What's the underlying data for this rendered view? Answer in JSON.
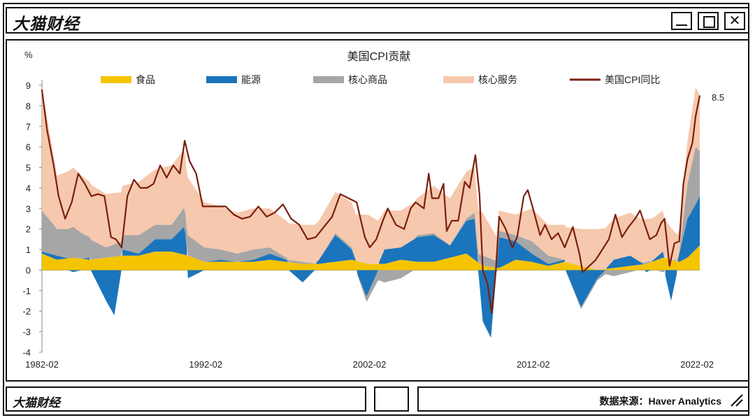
{
  "window": {
    "title": "大猫财经"
  },
  "footer": {
    "brand": "大猫财经",
    "source": "数据来源：Haver Analytics"
  },
  "colors": {
    "food": "#f5c400",
    "energy": "#1b75bc",
    "core_goods": "#a6a6a6",
    "core_services": "#f6c8ad",
    "cpi": "#7a1f0e"
  },
  "chart_data": {
    "type": "area",
    "title": "美国CPI贡献",
    "ylabel": "%",
    "ylim": [
      -4,
      9
    ],
    "yticks": [
      -4,
      -3,
      -2,
      -1,
      0,
      1,
      2,
      3,
      4,
      5,
      6,
      7,
      8,
      9
    ],
    "xlim": [
      1982.083,
      2022.25
    ],
    "xtick_labels": [
      "1982-02",
      "1992-02",
      "2002-02",
      "2012-02",
      "2022-02"
    ],
    "xticks": [
      1982.083,
      1992.083,
      2002.083,
      2012.083,
      2022.083
    ],
    "legend_position": "top",
    "annotation": "8.5",
    "series": [
      {
        "name": "食品",
        "key": "food",
        "points": [
          [
            1982.08,
            0.8
          ],
          [
            1983.0,
            0.5
          ],
          [
            1984.0,
            0.6
          ],
          [
            1985.0,
            0.5
          ],
          [
            1986.0,
            0.6
          ],
          [
            1987.0,
            0.7
          ],
          [
            1988.0,
            0.7
          ],
          [
            1989.0,
            0.9
          ],
          [
            1990.0,
            0.9
          ],
          [
            1991.0,
            0.7
          ],
          [
            1992.0,
            0.4
          ],
          [
            1993.0,
            0.4
          ],
          [
            1994.0,
            0.4
          ],
          [
            1995.0,
            0.4
          ],
          [
            1996.0,
            0.5
          ],
          [
            1997.0,
            0.4
          ],
          [
            1998.0,
            0.3
          ],
          [
            1999.0,
            0.3
          ],
          [
            2000.0,
            0.4
          ],
          [
            2001.0,
            0.5
          ],
          [
            2002.0,
            0.3
          ],
          [
            2003.0,
            0.3
          ],
          [
            2004.0,
            0.5
          ],
          [
            2005.0,
            0.4
          ],
          [
            2006.0,
            0.4
          ],
          [
            2007.0,
            0.6
          ],
          [
            2008.0,
            0.8
          ],
          [
            2009.0,
            0.2
          ],
          [
            2010.0,
            0.1
          ],
          [
            2011.0,
            0.5
          ],
          [
            2012.0,
            0.4
          ],
          [
            2013.0,
            0.2
          ],
          [
            2014.0,
            0.4
          ],
          [
            2015.0,
            0.2
          ],
          [
            2016.0,
            0.0
          ],
          [
            2017.0,
            0.1
          ],
          [
            2018.0,
            0.2
          ],
          [
            2019.0,
            0.3
          ],
          [
            2020.0,
            0.6
          ],
          [
            2021.0,
            0.4
          ],
          [
            2021.5,
            0.6
          ],
          [
            2022.0,
            1.0
          ],
          [
            2022.25,
            1.2
          ]
        ]
      },
      {
        "name": "能源",
        "key": "energy",
        "points": [
          [
            1982.08,
            0.1
          ],
          [
            1983.0,
            0.2
          ],
          [
            1984.0,
            -0.1
          ],
          [
            1985.0,
            0.1
          ],
          [
            1986.0,
            -1.5
          ],
          [
            1986.5,
            -2.2
          ],
          [
            1987.0,
            0.3
          ],
          [
            1988.0,
            0.1
          ],
          [
            1989.0,
            0.6
          ],
          [
            1990.0,
            0.6
          ],
          [
            1990.8,
            1.4
          ],
          [
            1991.0,
            -0.4
          ],
          [
            1992.0,
            0.0
          ],
          [
            1993.0,
            0.1
          ],
          [
            1994.0,
            0.0
          ],
          [
            1995.0,
            0.1
          ],
          [
            1996.0,
            0.3
          ],
          [
            1997.0,
            0.1
          ],
          [
            1998.0,
            -0.6
          ],
          [
            1999.0,
            0.2
          ],
          [
            2000.0,
            1.3
          ],
          [
            2001.0,
            0.5
          ],
          [
            2001.9,
            -1.3
          ],
          [
            2003.0,
            0.7
          ],
          [
            2004.0,
            0.6
          ],
          [
            2005.0,
            1.2
          ],
          [
            2006.0,
            1.3
          ],
          [
            2007.0,
            0.6
          ],
          [
            2008.0,
            1.6
          ],
          [
            2008.5,
            2.0
          ],
          [
            2009.0,
            -2.5
          ],
          [
            2009.5,
            -3.3
          ],
          [
            2010.0,
            1.5
          ],
          [
            2011.0,
            0.9
          ],
          [
            2012.0,
            0.4
          ],
          [
            2013.0,
            0.1
          ],
          [
            2014.0,
            0.1
          ],
          [
            2015.0,
            -1.8
          ],
          [
            2016.0,
            -0.4
          ],
          [
            2017.0,
            0.4
          ],
          [
            2018.0,
            0.5
          ],
          [
            2019.0,
            -0.1
          ],
          [
            2020.0,
            0.3
          ],
          [
            2020.5,
            -1.5
          ],
          [
            2021.0,
            0.4
          ],
          [
            2021.5,
            1.9
          ],
          [
            2022.0,
            2.2
          ],
          [
            2022.25,
            2.4
          ]
        ]
      },
      {
        "name": "核心商品",
        "key": "core_goods",
        "points": [
          [
            1982.08,
            2.0
          ],
          [
            1983.0,
            1.3
          ],
          [
            1984.0,
            1.5
          ],
          [
            1985.0,
            1.0
          ],
          [
            1986.0,
            0.5
          ],
          [
            1987.0,
            0.7
          ],
          [
            1988.0,
            0.9
          ],
          [
            1989.0,
            0.7
          ],
          [
            1990.0,
            0.7
          ],
          [
            1991.0,
            1.0
          ],
          [
            1992.0,
            0.7
          ],
          [
            1993.0,
            0.5
          ],
          [
            1994.0,
            0.4
          ],
          [
            1995.0,
            0.5
          ],
          [
            1996.0,
            0.3
          ],
          [
            1997.0,
            0.1
          ],
          [
            1998.0,
            0.1
          ],
          [
            1999.0,
            0.0
          ],
          [
            2000.0,
            0.1
          ],
          [
            2001.0,
            0.1
          ],
          [
            2002.0,
            -0.3
          ],
          [
            2003.0,
            -0.6
          ],
          [
            2004.0,
            -0.4
          ],
          [
            2005.0,
            0.1
          ],
          [
            2006.0,
            0.1
          ],
          [
            2007.0,
            0.0
          ],
          [
            2008.0,
            0.1
          ],
          [
            2009.0,
            0.5
          ],
          [
            2010.0,
            0.3
          ],
          [
            2011.0,
            0.3
          ],
          [
            2012.0,
            0.6
          ],
          [
            2013.0,
            0.4
          ],
          [
            2014.0,
            0.0
          ],
          [
            2015.0,
            -0.1
          ],
          [
            2016.0,
            -0.1
          ],
          [
            2017.0,
            -0.3
          ],
          [
            2018.0,
            -0.1
          ],
          [
            2019.0,
            0.1
          ],
          [
            2020.0,
            -0.1
          ],
          [
            2021.0,
            0.1
          ],
          [
            2021.5,
            1.7
          ],
          [
            2022.0,
            2.8
          ],
          [
            2022.25,
            2.2
          ]
        ]
      },
      {
        "name": "核心服务",
        "key": "core_services",
        "points": [
          [
            1982.08,
            6.0
          ],
          [
            1983.0,
            2.6
          ],
          [
            1984.0,
            2.9
          ],
          [
            1985.0,
            2.7
          ],
          [
            1986.0,
            2.6
          ],
          [
            1987.0,
            2.4
          ],
          [
            1988.0,
            2.6
          ],
          [
            1989.0,
            2.7
          ],
          [
            1990.0,
            2.9
          ],
          [
            1991.0,
            2.8
          ],
          [
            1992.0,
            2.2
          ],
          [
            1993.0,
            2.1
          ],
          [
            1994.0,
            2.0
          ],
          [
            1995.0,
            2.0
          ],
          [
            1996.0,
            1.9
          ],
          [
            1997.0,
            1.8
          ],
          [
            1998.0,
            1.8
          ],
          [
            1999.0,
            1.9
          ],
          [
            2000.0,
            2.0
          ],
          [
            2001.0,
            2.2
          ],
          [
            2002.0,
            2.4
          ],
          [
            2003.0,
            1.9
          ],
          [
            2004.0,
            1.8
          ],
          [
            2005.0,
            1.8
          ],
          [
            2006.0,
            2.3
          ],
          [
            2007.0,
            2.3
          ],
          [
            2008.0,
            2.3
          ],
          [
            2009.0,
            2.1
          ],
          [
            2010.0,
            1.0
          ],
          [
            2011.0,
            1.0
          ],
          [
            2012.0,
            1.6
          ],
          [
            2013.0,
            1.5
          ],
          [
            2014.0,
            1.7
          ],
          [
            2015.0,
            1.8
          ],
          [
            2016.0,
            2.0
          ],
          [
            2017.0,
            2.0
          ],
          [
            2018.0,
            2.1
          ],
          [
            2019.0,
            2.1
          ],
          [
            2020.0,
            2.0
          ],
          [
            2021.0,
            1.1
          ],
          [
            2021.5,
            2.1
          ],
          [
            2022.0,
            2.9
          ],
          [
            2022.25,
            2.7
          ]
        ]
      }
    ],
    "line": {
      "name": "美国CPI同比",
      "key": "cpi",
      "points": [
        [
          1982.08,
          8.8
        ],
        [
          1982.4,
          6.8
        ],
        [
          1982.8,
          5.1
        ],
        [
          1983.1,
          3.6
        ],
        [
          1983.5,
          2.5
        ],
        [
          1983.9,
          3.3
        ],
        [
          1984.3,
          4.7
        ],
        [
          1984.7,
          4.2
        ],
        [
          1985.1,
          3.6
        ],
        [
          1985.5,
          3.7
        ],
        [
          1985.9,
          3.6
        ],
        [
          1986.3,
          1.6
        ],
        [
          1986.6,
          1.5
        ],
        [
          1986.95,
          1.1
        ],
        [
          1987.3,
          3.6
        ],
        [
          1987.7,
          4.4
        ],
        [
          1988.1,
          4.0
        ],
        [
          1988.5,
          4.0
        ],
        [
          1988.9,
          4.2
        ],
        [
          1989.3,
          5.1
        ],
        [
          1989.7,
          4.5
        ],
        [
          1990.1,
          5.1
        ],
        [
          1990.5,
          4.7
        ],
        [
          1990.8,
          6.3
        ],
        [
          1991.1,
          5.3
        ],
        [
          1991.5,
          4.7
        ],
        [
          1991.9,
          3.1
        ],
        [
          1992.3,
          3.1
        ],
        [
          1992.8,
          3.1
        ],
        [
          1993.3,
          3.1
        ],
        [
          1993.8,
          2.7
        ],
        [
          1994.3,
          2.5
        ],
        [
          1994.8,
          2.6
        ],
        [
          1995.3,
          3.1
        ],
        [
          1995.8,
          2.6
        ],
        [
          1996.3,
          2.8
        ],
        [
          1996.8,
          3.2
        ],
        [
          1997.3,
          2.5
        ],
        [
          1997.8,
          2.2
        ],
        [
          1998.3,
          1.5
        ],
        [
          1998.8,
          1.6
        ],
        [
          1999.3,
          2.1
        ],
        [
          1999.8,
          2.6
        ],
        [
          2000.3,
          3.7
        ],
        [
          2000.8,
          3.5
        ],
        [
          2001.3,
          3.3
        ],
        [
          2001.8,
          1.6
        ],
        [
          2002.1,
          1.1
        ],
        [
          2002.5,
          1.5
        ],
        [
          2002.9,
          2.4
        ],
        [
          2003.2,
          3.0
        ],
        [
          2003.7,
          2.2
        ],
        [
          2004.2,
          2.0
        ],
        [
          2004.6,
          3.0
        ],
        [
          2004.9,
          3.3
        ],
        [
          2005.4,
          3.0
        ],
        [
          2005.7,
          4.7
        ],
        [
          2005.9,
          3.5
        ],
        [
          2006.3,
          3.5
        ],
        [
          2006.6,
          4.2
        ],
        [
          2006.8,
          1.9
        ],
        [
          2007.1,
          2.4
        ],
        [
          2007.5,
          2.4
        ],
        [
          2007.9,
          4.3
        ],
        [
          2008.2,
          4.0
        ],
        [
          2008.55,
          5.6
        ],
        [
          2008.8,
          3.7
        ],
        [
          2009.0,
          0.0
        ],
        [
          2009.3,
          -0.7
        ],
        [
          2009.55,
          -2.1
        ],
        [
          2009.8,
          0.0
        ],
        [
          2010.0,
          2.6
        ],
        [
          2010.4,
          2.0
        ],
        [
          2010.8,
          1.1
        ],
        [
          2011.1,
          1.6
        ],
        [
          2011.5,
          3.6
        ],
        [
          2011.75,
          3.9
        ],
        [
          2012.1,
          2.9
        ],
        [
          2012.5,
          1.7
        ],
        [
          2012.8,
          2.2
        ],
        [
          2013.2,
          1.5
        ],
        [
          2013.6,
          1.8
        ],
        [
          2014.0,
          1.1
        ],
        [
          2014.5,
          2.1
        ],
        [
          2014.9,
          0.8
        ],
        [
          2015.1,
          -0.1
        ],
        [
          2015.5,
          0.2
        ],
        [
          2015.9,
          0.5
        ],
        [
          2016.3,
          1.0
        ],
        [
          2016.7,
          1.5
        ],
        [
          2017.1,
          2.7
        ],
        [
          2017.5,
          1.6
        ],
        [
          2017.9,
          2.1
        ],
        [
          2018.3,
          2.5
        ],
        [
          2018.6,
          2.9
        ],
        [
          2018.9,
          2.2
        ],
        [
          2019.2,
          1.5
        ],
        [
          2019.6,
          1.7
        ],
        [
          2019.9,
          2.3
        ],
        [
          2020.1,
          2.5
        ],
        [
          2020.4,
          0.2
        ],
        [
          2020.7,
          1.3
        ],
        [
          2021.0,
          1.4
        ],
        [
          2021.25,
          4.2
        ],
        [
          2021.5,
          5.4
        ],
        [
          2021.8,
          6.2
        ],
        [
          2022.0,
          7.5
        ],
        [
          2022.25,
          8.5
        ]
      ]
    }
  }
}
